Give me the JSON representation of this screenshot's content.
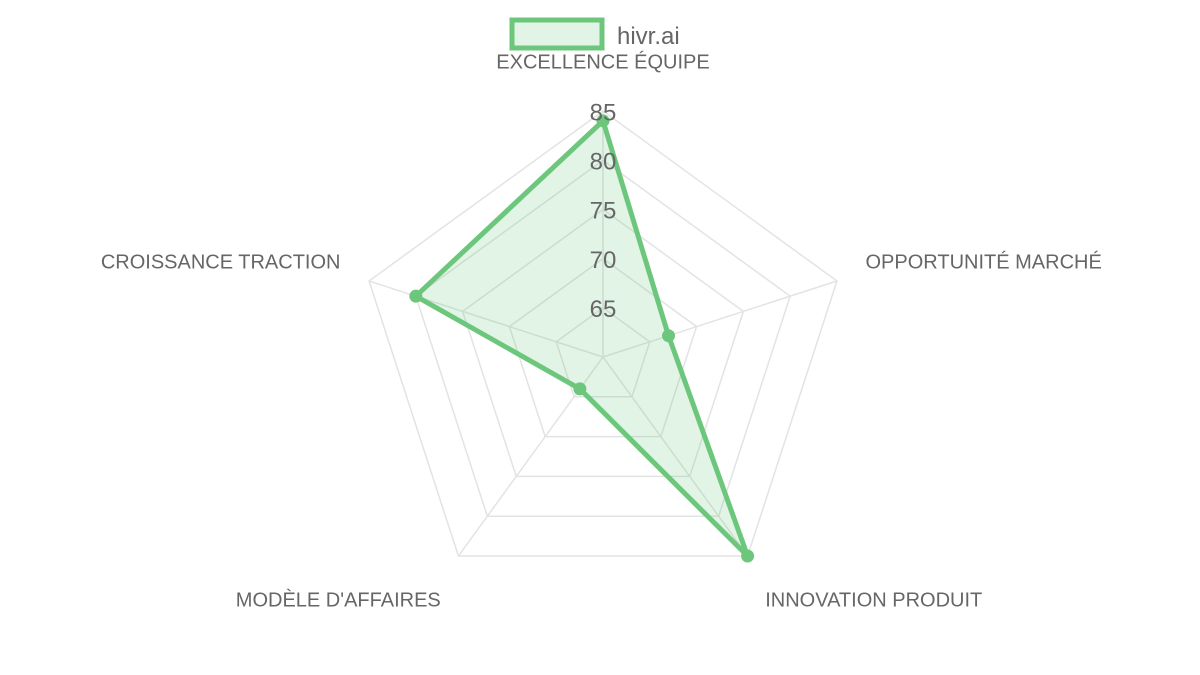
{
  "chart_data": {
    "type": "radar",
    "categories": [
      "EXCELLENCE ÉQUIPE",
      "OPPORTUNITÉ MARCHÉ",
      "INNOVATION PRODUIT",
      "MODÈLE D'AFFAIRES",
      "CROISSANCE TRACTION"
    ],
    "series": [
      {
        "name": "hivr.ai",
        "values": [
          84,
          67,
          85,
          64,
          80
        ],
        "color": "#6cc77c",
        "fill": "#6cc77c33"
      }
    ],
    "ticks": [
      65,
      70,
      75,
      80,
      85
    ],
    "rlim": [
      60,
      85
    ],
    "grid": true,
    "legend": "top"
  }
}
